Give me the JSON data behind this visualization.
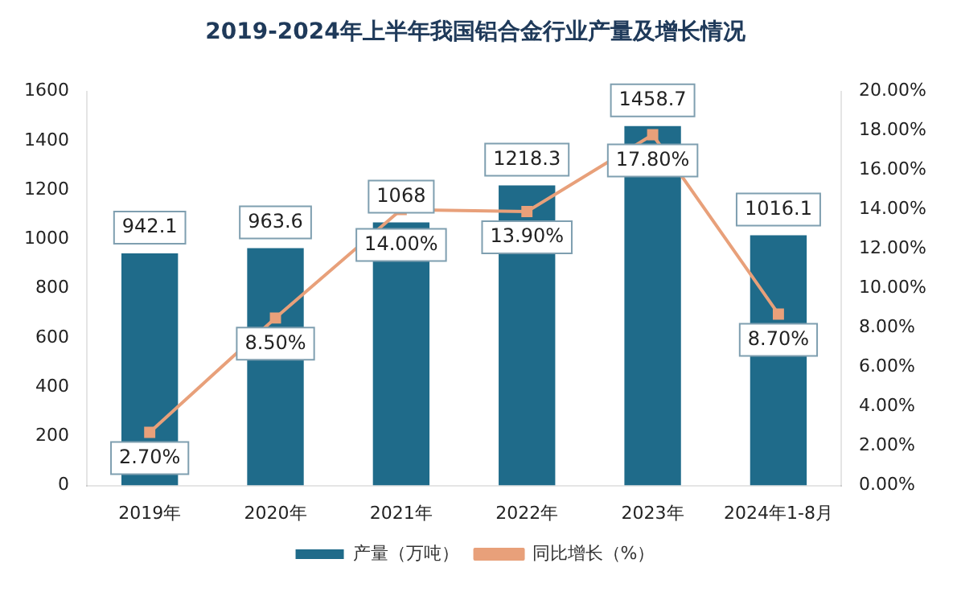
{
  "chart_data": {
    "type": "bar",
    "title": "2019-2024年上半年我国铝合金行业产量及增长情况",
    "categories": [
      "2019年",
      "2020年",
      "2021年",
      "2022年",
      "2023年",
      "2024年1-8月"
    ],
    "series": [
      {
        "name": "产量（万吨）",
        "color": "#1f6b8a",
        "values": [
          942.1,
          963.6,
          1068,
          1218.3,
          1458.7,
          1016.1
        ],
        "value_labels": [
          "942.1",
          "963.6",
          "1068",
          "1218.3",
          "1458.7",
          "1016.1"
        ]
      },
      {
        "name": "同比增长（%）",
        "type": "line",
        "axis": "y2",
        "color": "#e8a07a",
        "marker": "square",
        "values": [
          2.7,
          8.5,
          14.0,
          13.9,
          17.8,
          8.7
        ],
        "value_labels": [
          "2.70%",
          "8.50%",
          "14.00%",
          "13.90%",
          "17.80%",
          "8.70%"
        ]
      }
    ],
    "ylim": [
      0,
      1600
    ],
    "yticks": [
      0,
      200,
      400,
      600,
      800,
      1000,
      1200,
      1400,
      1600
    ],
    "y2lim": [
      0,
      20
    ],
    "y2ticks": [
      {
        "value": 0,
        "label": "0.00%"
      },
      {
        "value": 2,
        "label": "2.00%"
      },
      {
        "value": 4,
        "label": "4.00%"
      },
      {
        "value": 6,
        "label": "6.00%"
      },
      {
        "value": 8,
        "label": "8.00%"
      },
      {
        "value": 10,
        "label": "10.00%"
      },
      {
        "value": 12,
        "label": "12.00%"
      },
      {
        "value": 14,
        "label": "14.00%"
      },
      {
        "value": 16,
        "label": "16.00%"
      },
      {
        "value": 18,
        "label": "18.00%"
      },
      {
        "value": 20,
        "label": "20.00%"
      }
    ],
    "grid": false,
    "legend": "bottom"
  }
}
